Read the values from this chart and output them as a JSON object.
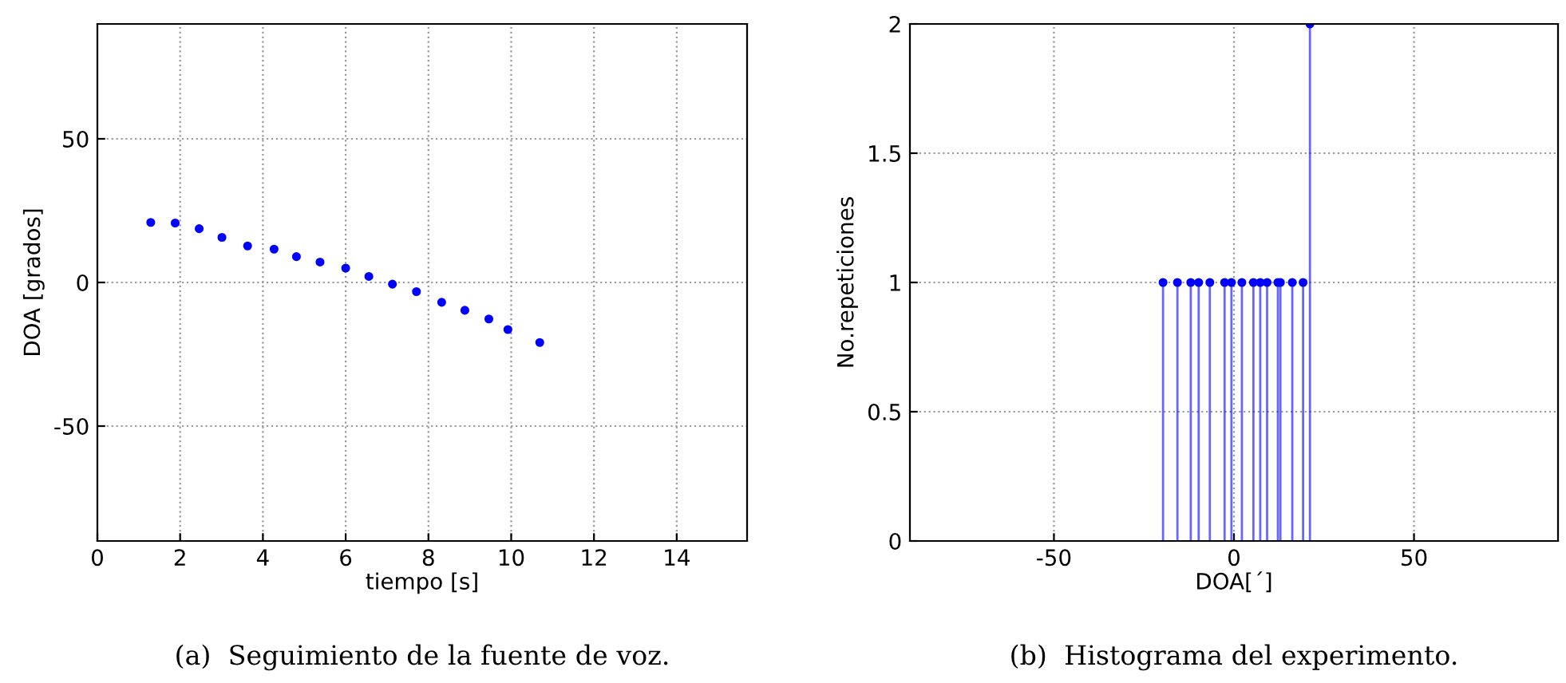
{
  "chart_data": [
    {
      "type": "scatter",
      "xlabel": "tiempo [s]",
      "ylabel": "DOA [grados]",
      "marker": "circle",
      "grid": true,
      "xlim": [
        0,
        15.7
      ],
      "xticks": [
        0,
        2,
        4,
        6,
        8,
        10,
        12,
        14
      ],
      "ylim": [
        -90,
        90
      ],
      "yticks": [
        -50,
        0,
        50
      ],
      "series": [
        {
          "color": "#0000ff",
          "x": [
            1.29,
            1.88,
            2.46,
            3.01,
            3.63,
            4.27,
            4.81,
            5.38,
            6.0,
            6.56,
            7.13,
            7.71,
            8.32,
            8.88,
            9.46,
            9.92,
            10.69
          ],
          "values": [
            20.9,
            20.7,
            18.7,
            15.7,
            12.7,
            11.6,
            9.0,
            7.1,
            5.0,
            2.1,
            -0.6,
            -3.2,
            -6.9,
            -9.7,
            -12.7,
            -16.4,
            -20.9
          ]
        }
      ],
      "annotations": [
        "(a)  Seguimiento de la fuente de voz."
      ]
    },
    {
      "type": "lollipop",
      "xlabel": "DOA[´]",
      "ylabel": "No.repeticiones",
      "marker": "circle",
      "grid": true,
      "xlim": [
        -90,
        90
      ],
      "xticks": [
        -50,
        0,
        50
      ],
      "ylim": [
        0,
        2
      ],
      "yticks": [
        0,
        0.5,
        1,
        1.5,
        2
      ],
      "series": [
        {
          "color": "#0000ff",
          "x": [
            -19.7,
            -15.7,
            -12.0,
            -9.8,
            -6.7,
            -2.6,
            -0.7,
            2.2,
            5.4,
            7.3,
            9.2,
            12.2,
            12.9,
            16.2,
            19.2,
            21.1
          ],
          "values": [
            1,
            1,
            1,
            1,
            1,
            1,
            1,
            1,
            1,
            1,
            1,
            1,
            1,
            1,
            1,
            2
          ]
        }
      ],
      "annotations": [
        "(b)  Histograma del experimento."
      ]
    }
  ]
}
